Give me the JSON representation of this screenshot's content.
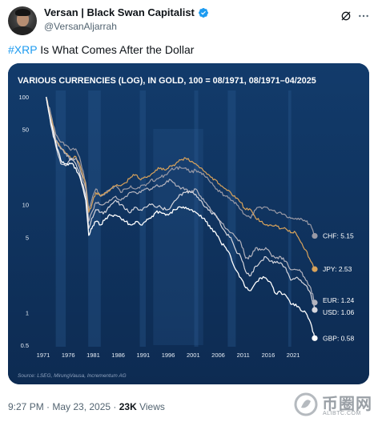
{
  "tweet": {
    "author_name": "Versan | Black Swan Capitalist",
    "handle": "@VersanAljarrah",
    "text_hashtag": "#XRP",
    "text_rest": " Is What Comes After the Dollar",
    "timestamp": "9:27 PM · May 23, 2025 · ",
    "views_count": "23K",
    "views_label": " Views"
  },
  "icons": {
    "avatar": "avatar",
    "verified": "verified-badge-icon",
    "grok": "grok-icon",
    "more": "more-icon"
  },
  "watermark": {
    "text": "币圈网",
    "sub": "ALIBTC.COM"
  },
  "colors": {
    "accent": "#1d9bf0",
    "chart_bg": "#10335e",
    "chf": "#9a9aa6",
    "jpy": "#d9a35b",
    "eur": "#b3b3be",
    "usd": "#d7d7de",
    "gbp": "#ffffff"
  },
  "chart_data": {
    "type": "line",
    "title": "VARIOUS CURRENCIES (LOG), IN GOLD, 100 = 08/1971, 08/1971–04/2025",
    "source": "Source: LSEG, MirungVausa, Incrementum AG",
    "y_scale": "log",
    "ylim": [
      0.5,
      100
    ],
    "y_ticks": [
      100,
      50,
      10,
      5,
      1,
      0.5
    ],
    "y_tick_labels": [
      "100",
      "50",
      "10",
      "5",
      "1",
      "0.5"
    ],
    "xlim": [
      1971,
      2025.3
    ],
    "x_ticks": [
      1971,
      1976,
      1981,
      1986,
      1991,
      1996,
      2001,
      2006,
      2011,
      2016,
      2021
    ],
    "x_tick_labels": [
      "1971",
      "1976",
      "1981",
      "1986",
      "1991",
      "1996",
      "2001",
      "2006",
      "2011",
      "2016",
      "2021"
    ],
    "grid": false,
    "legend": "end-labels-right",
    "series": [
      {
        "name": "CHF",
        "end_label": "CHF: 5.15",
        "x": [
          1971.6,
          1972.5,
          1973.5,
          1974.5,
          1975.5,
          1976.5,
          1977.5,
          1978.5,
          1979.5,
          1980.1,
          1980.7,
          1981.5,
          1982.5,
          1983.5,
          1984.5,
          1985.5,
          1986.5,
          1987.5,
          1988.5,
          1989.5,
          1990.5,
          1991.5,
          1992.5,
          1993.5,
          1994.5,
          1995.5,
          1996.5,
          1997.5,
          1998.5,
          1999.5,
          2000.5,
          2001.5,
          2002.5,
          2003.5,
          2004.5,
          2005.5,
          2006.5,
          2007.5,
          2008.5,
          2009.5,
          2010.5,
          2011.5,
          2012.5,
          2013.5,
          2014.5,
          2015.5,
          2016.5,
          2017.5,
          2018.5,
          2019.5,
          2020.5,
          2021.5,
          2022.5,
          2023.5,
          2024.5,
          2025.3
        ],
        "y": [
          100,
          70,
          45,
          38,
          36,
          32,
          33,
          25,
          16,
          9,
          11,
          14,
          12,
          13,
          14,
          15,
          13,
          14,
          15,
          14,
          15,
          15,
          17,
          17,
          18,
          19,
          21,
          22,
          22,
          22,
          20,
          21,
          20,
          18,
          16,
          14,
          13,
          12,
          11,
          10.5,
          9,
          8,
          7.5,
          9,
          9.5,
          9.5,
          9,
          8.5,
          8.5,
          8,
          7.5,
          7.5,
          7.5,
          7,
          6.5,
          5.15
        ]
      },
      {
        "name": "JPY",
        "end_label": "JPY: 2.53",
        "x": [
          1971.6,
          1972.5,
          1973.5,
          1974.5,
          1975.5,
          1976.5,
          1977.5,
          1978.5,
          1979.5,
          1980.1,
          1980.7,
          1981.5,
          1982.5,
          1983.5,
          1984.5,
          1985.5,
          1986.5,
          1987.5,
          1988.5,
          1989.5,
          1990.5,
          1991.5,
          1992.5,
          1993.5,
          1994.5,
          1995.5,
          1996.5,
          1997.5,
          1998.5,
          1999.5,
          2000.5,
          2001.5,
          2002.5,
          2003.5,
          2004.5,
          2005.5,
          2006.5,
          2007.5,
          2008.5,
          2009.5,
          2010.5,
          2011.5,
          2012.5,
          2013.5,
          2014.5,
          2015.5,
          2016.5,
          2017.5,
          2018.5,
          2019.5,
          2020.5,
          2021.5,
          2022.5,
          2023.5,
          2024.5,
          2025.3
        ],
        "y": [
          100,
          65,
          40,
          34,
          30,
          27,
          28,
          22,
          15,
          8.5,
          10,
          13,
          12,
          13,
          14,
          15,
          15,
          16,
          18,
          19,
          17,
          18,
          19,
          21,
          22,
          21,
          23,
          24,
          26,
          27,
          25,
          24,
          22,
          20,
          18,
          17,
          15,
          14,
          13,
          11.5,
          10.5,
          9,
          9,
          7.5,
          7,
          6.5,
          6.5,
          6.5,
          6,
          6,
          5.5,
          5.5,
          4.5,
          3.8,
          3,
          2.53
        ]
      },
      {
        "name": "EUR",
        "end_label": "EUR: 1.24",
        "x": [
          1971.6,
          1972.5,
          1973.5,
          1974.5,
          1975.5,
          1976.5,
          1977.5,
          1978.5,
          1979.5,
          1980.1,
          1980.7,
          1981.5,
          1982.5,
          1983.5,
          1984.5,
          1985.5,
          1986.5,
          1987.5,
          1988.5,
          1989.5,
          1990.5,
          1991.5,
          1992.5,
          1993.5,
          1994.5,
          1995.5,
          1996.5,
          1997.5,
          1998.5,
          1999.5,
          2000.5,
          2001.5,
          2002.5,
          2003.5,
          2004.5,
          2005.5,
          2006.5,
          2007.5,
          2008.5,
          2009.5,
          2010.5,
          2011.5,
          2012.5,
          2013.5,
          2014.5,
          2015.5,
          2016.5,
          2017.5,
          2018.5,
          2019.5,
          2020.5,
          2021.5,
          2022.5,
          2023.5,
          2024.5,
          2025.3
        ],
        "y": [
          100,
          62,
          40,
          33,
          30,
          26,
          27,
          20,
          14,
          7,
          8.5,
          10.5,
          10,
          10.5,
          11,
          12,
          11,
          12,
          13,
          13,
          13,
          14,
          14,
          15,
          15,
          16,
          17,
          15,
          14,
          14,
          13,
          14,
          12,
          10.5,
          9,
          8,
          7,
          6,
          5.5,
          5,
          4.5,
          3.2,
          3.3,
          4,
          3.8,
          4,
          3.5,
          3.2,
          3.3,
          3,
          2.5,
          2.5,
          2.4,
          2,
          1.7,
          1.24
        ]
      },
      {
        "name": "USD",
        "end_label": "USD: 1.06",
        "x": [
          1971.6,
          1972.5,
          1973.5,
          1974.5,
          1975.5,
          1976.5,
          1977.5,
          1978.5,
          1979.5,
          1980.1,
          1980.7,
          1981.5,
          1982.5,
          1983.5,
          1984.5,
          1985.5,
          1986.5,
          1987.5,
          1988.5,
          1989.5,
          1990.5,
          1991.5,
          1992.5,
          1993.5,
          1994.5,
          1995.5,
          1996.5,
          1997.5,
          1998.5,
          1999.5,
          2000.5,
          2001.5,
          2002.5,
          2003.5,
          2004.5,
          2005.5,
          2006.5,
          2007.5,
          2008.5,
          2009.5,
          2010.5,
          2011.5,
          2012.5,
          2013.5,
          2014.5,
          2015.5,
          2016.5,
          2017.5,
          2018.5,
          2019.5,
          2020.5,
          2021.5,
          2022.5,
          2023.5,
          2024.5,
          2025.3
        ],
        "y": [
          100,
          55,
          35,
          24,
          23,
          27,
          24,
          18,
          12,
          6,
          7.5,
          9,
          8.5,
          8.5,
          10,
          11,
          10,
          9,
          8.5,
          9.5,
          9,
          9.5,
          10,
          9.5,
          9.5,
          9,
          9.5,
          11,
          12.5,
          13,
          13,
          12.5,
          11,
          9.5,
          8.5,
          8,
          6.5,
          5.5,
          5,
          3.8,
          3.3,
          2.4,
          2.2,
          2.7,
          3,
          3.3,
          3,
          2.9,
          2.9,
          2.6,
          2,
          2.1,
          2,
          1.8,
          1.5,
          1.06
        ]
      },
      {
        "name": "GBP",
        "end_label": "GBP: 0.58",
        "x": [
          1971.6,
          1972.5,
          1973.5,
          1974.5,
          1975.5,
          1976.5,
          1977.5,
          1978.5,
          1979.5,
          1980.1,
          1980.7,
          1981.5,
          1982.5,
          1983.5,
          1984.5,
          1985.5,
          1986.5,
          1987.5,
          1988.5,
          1989.5,
          1990.5,
          1991.5,
          1992.5,
          1993.5,
          1994.5,
          1995.5,
          1996.5,
          1997.5,
          1998.5,
          1999.5,
          2000.5,
          2001.5,
          2002.5,
          2003.5,
          2004.5,
          2005.5,
          2006.5,
          2007.5,
          2008.5,
          2009.5,
          2010.5,
          2011.5,
          2012.5,
          2013.5,
          2014.5,
          2015.5,
          2016.5,
          2017.5,
          2018.5,
          2019.5,
          2020.5,
          2021.5,
          2022.5,
          2023.5,
          2024.5,
          2025.3
        ],
        "y": [
          100,
          58,
          38,
          26,
          24,
          24,
          22,
          17,
          11,
          5.2,
          6,
          7,
          6.5,
          7.5,
          8,
          8,
          7.5,
          7,
          6.5,
          7,
          6.5,
          7,
          7.5,
          8.5,
          8.5,
          8,
          8.5,
          9,
          9.5,
          9.5,
          9,
          8.5,
          8,
          7,
          6,
          5.5,
          4.5,
          4,
          3.3,
          2.5,
          2.1,
          1.7,
          1.6,
          1.9,
          2.1,
          2.1,
          1.9,
          1.5,
          1.55,
          1.45,
          1.2,
          1.2,
          1.05,
          1,
          0.8,
          0.58
        ]
      }
    ]
  }
}
